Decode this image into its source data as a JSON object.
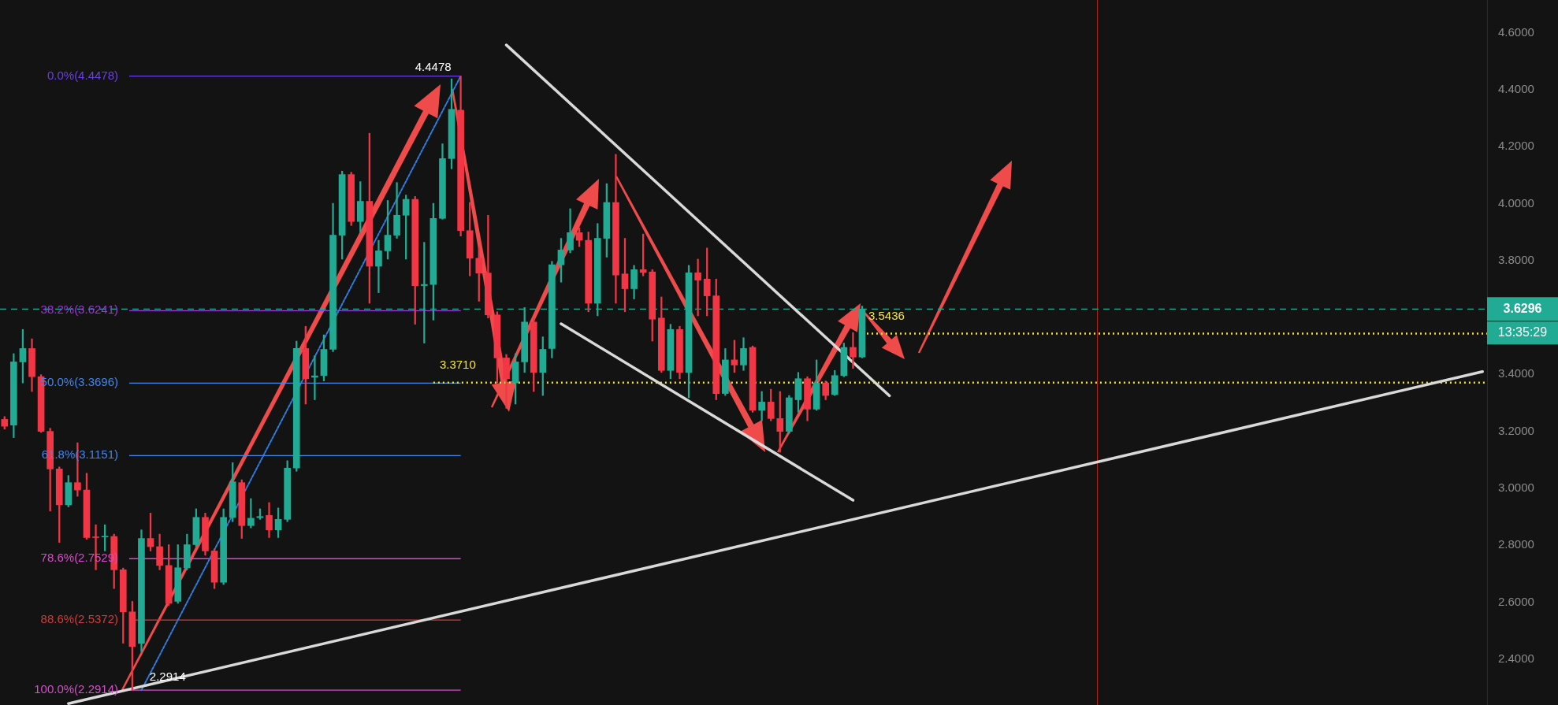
{
  "chart_data": {
    "type": "candlestick",
    "categories": [
      null,
      null,
      null,
      null,
      null,
      null,
      null,
      null,
      null,
      null,
      null,
      null,
      null,
      null,
      null,
      null,
      null,
      null,
      null,
      null,
      null,
      null,
      null,
      null,
      null,
      null,
      null,
      null,
      null,
      null,
      null,
      null,
      null,
      null,
      null,
      null,
      null,
      null,
      null,
      null,
      null,
      null,
      null,
      null,
      null,
      null,
      null,
      null,
      null,
      null,
      null,
      null,
      null,
      null,
      null,
      null,
      null,
      null,
      null,
      null,
      null,
      null,
      null,
      null,
      null,
      null,
      null,
      null,
      null,
      null,
      null,
      null,
      null,
      null,
      null,
      null,
      null,
      null,
      null,
      null,
      null,
      null,
      null,
      null,
      null,
      null,
      null,
      null,
      null,
      null,
      null,
      null,
      null,
      null,
      null,
      null,
      null,
      null,
      null,
      null,
      null,
      null,
      null,
      null,
      null,
      null,
      null,
      null,
      null,
      null,
      null,
      null,
      null,
      null,
      null,
      null,
      null,
      null,
      null,
      null,
      null,
      null,
      null,
      null,
      null,
      null,
      null,
      null,
      null,
      null,
      null,
      null,
      null,
      null,
      null,
      null,
      null,
      null,
      null,
      null,
      null,
      null,
      null,
      null,
      null,
      null,
      null,
      null,
      null,
      null,
      null,
      null,
      null,
      null,
      null,
      null,
      null,
      null,
      null,
      null,
      null,
      null,
      null
    ],
    "ohlc": [
      [
        3.242,
        3.252,
        3.208,
        3.218
      ],
      [
        3.222,
        3.473,
        3.178,
        3.444
      ],
      [
        3.444,
        3.558,
        3.37,
        3.491
      ],
      [
        3.491,
        3.525,
        3.34,
        3.392
      ],
      [
        3.392,
        3.399,
        3.196,
        3.2
      ],
      [
        3.2,
        3.211,
        2.92,
        3.068
      ],
      [
        3.068,
        3.075,
        2.81,
        2.942
      ],
      [
        2.942,
        3.045,
        2.935,
        3.02
      ],
      [
        3.02,
        3.16,
        2.972,
        2.994
      ],
      [
        2.994,
        3.053,
        2.821,
        2.827
      ],
      [
        2.829,
        2.872,
        2.714,
        2.827
      ],
      [
        2.829,
        2.872,
        2.78,
        2.831
      ],
      [
        2.831,
        2.839,
        2.648,
        2.714
      ],
      [
        2.714,
        2.72,
        2.456,
        2.566
      ],
      [
        2.566,
        2.603,
        2.2914,
        2.444
      ],
      [
        2.456,
        2.854,
        2.426,
        2.824
      ],
      [
        2.824,
        2.913,
        2.78,
        2.795
      ],
      [
        2.795,
        2.839,
        2.714,
        2.729
      ],
      [
        2.729,
        2.802,
        2.589,
        2.596
      ],
      [
        2.603,
        2.802,
        2.596,
        2.721
      ],
      [
        2.721,
        2.839,
        2.714,
        2.802
      ],
      [
        2.802,
        2.928,
        2.795,
        2.898
      ],
      [
        2.898,
        2.913,
        2.765,
        2.78
      ],
      [
        2.78,
        2.787,
        2.648,
        2.67
      ],
      [
        2.67,
        2.928,
        2.662,
        2.898
      ],
      [
        2.898,
        3.09,
        2.883,
        3.023
      ],
      [
        3.02,
        3.03,
        2.824,
        2.869
      ],
      [
        2.869,
        2.964,
        2.861,
        2.895
      ],
      [
        2.897,
        2.928,
        2.891,
        2.901
      ],
      [
        2.905,
        2.95,
        2.827,
        2.854
      ],
      [
        2.854,
        2.931,
        2.827,
        2.891
      ],
      [
        2.891,
        3.097,
        2.883,
        3.071
      ],
      [
        3.071,
        3.517,
        3.06,
        3.491
      ],
      [
        3.491,
        3.569,
        3.296,
        3.385
      ],
      [
        3.39,
        3.466,
        3.311,
        3.395
      ],
      [
        3.396,
        3.539,
        3.377,
        3.488
      ],
      [
        3.488,
        4.001,
        3.48,
        3.889
      ],
      [
        3.889,
        4.114,
        3.805,
        4.102
      ],
      [
        4.102,
        4.11,
        3.923,
        3.937
      ],
      [
        3.937,
        4.077,
        3.9,
        4.008
      ],
      [
        4.008,
        4.247,
        3.65,
        3.78
      ],
      [
        3.78,
        3.871,
        3.687,
        3.834
      ],
      [
        3.834,
        4.011,
        3.805,
        3.889
      ],
      [
        3.889,
        4.074,
        3.878,
        3.959
      ],
      [
        3.959,
        4.03,
        3.805,
        4.015
      ],
      [
        4.015,
        4.025,
        3.576,
        3.712
      ],
      [
        3.712,
        3.864,
        3.51,
        3.716
      ],
      [
        3.716,
        4.001,
        3.591,
        3.948
      ],
      [
        3.948,
        4.21,
        3.945,
        4.158
      ],
      [
        4.158,
        4.438,
        4.122,
        4.331
      ],
      [
        4.328,
        4.4478,
        3.886,
        3.905
      ],
      [
        3.905,
        4.004,
        3.746,
        3.808
      ],
      [
        3.808,
        3.845,
        3.657,
        3.756
      ],
      [
        3.756,
        3.959,
        3.598,
        3.609
      ],
      [
        3.609,
        3.62,
        3.37,
        3.458
      ],
      [
        3.458,
        3.47,
        3.281,
        3.385
      ],
      [
        3.37,
        3.473,
        3.296,
        3.444
      ],
      [
        3.444,
        3.635,
        3.407,
        3.584
      ],
      [
        3.584,
        3.598,
        3.34,
        3.407
      ],
      [
        3.407,
        3.532,
        3.326,
        3.488
      ],
      [
        3.491,
        3.797,
        3.458,
        3.785
      ],
      [
        3.785,
        3.878,
        3.724,
        3.837
      ],
      [
        3.837,
        3.982,
        3.827,
        3.898
      ],
      [
        3.898,
        3.915,
        3.849,
        3.871
      ],
      [
        3.871,
        3.9,
        3.62,
        3.65
      ],
      [
        3.65,
        3.93,
        3.606,
        3.878
      ],
      [
        3.878,
        4.07,
        3.812,
        4.004
      ],
      [
        4.004,
        4.173,
        3.65,
        3.749
      ],
      [
        3.753,
        3.878,
        3.62,
        3.701
      ],
      [
        3.701,
        3.783,
        3.665,
        3.768
      ],
      [
        3.768,
        3.893,
        3.746,
        3.758
      ],
      [
        3.76,
        3.768,
        3.517,
        3.594
      ],
      [
        3.598,
        3.672,
        3.407,
        3.414
      ],
      [
        3.414,
        3.576,
        3.385,
        3.558
      ],
      [
        3.558,
        3.569,
        3.385,
        3.407
      ],
      [
        3.407,
        3.783,
        3.318,
        3.757
      ],
      [
        3.757,
        3.805,
        3.606,
        3.731
      ],
      [
        3.735,
        3.844,
        3.606,
        3.676
      ],
      [
        3.676,
        3.735,
        3.311,
        3.333
      ],
      [
        3.333,
        3.491,
        3.326,
        3.451
      ],
      [
        3.451,
        3.52,
        3.407,
        3.433
      ],
      [
        3.433,
        3.529,
        3.414,
        3.491
      ],
      [
        3.495,
        3.5,
        3.267,
        3.274
      ],
      [
        3.274,
        3.34,
        3.237,
        3.303
      ],
      [
        3.303,
        3.348,
        3.237,
        3.245
      ],
      [
        3.245,
        3.34,
        3.127,
        3.2
      ],
      [
        3.2,
        3.326,
        3.193,
        3.318
      ],
      [
        3.311,
        3.407,
        3.267,
        3.385
      ],
      [
        3.385,
        3.392,
        3.237,
        3.278
      ],
      [
        3.278,
        3.451,
        3.274,
        3.37
      ],
      [
        3.37,
        3.377,
        3.311,
        3.326
      ],
      [
        3.329,
        3.414,
        3.326,
        3.396
      ],
      [
        3.396,
        3.51,
        3.392,
        3.495
      ],
      [
        3.495,
        3.547,
        3.421,
        3.461
      ],
      [
        3.461,
        3.64,
        3.458,
        3.6296
      ],
      null,
      null,
      null,
      null,
      null,
      null,
      null,
      null,
      null,
      null,
      null,
      null,
      null,
      null,
      null,
      null,
      null,
      null,
      null,
      null,
      null,
      null,
      null,
      null,
      null,
      null,
      null,
      null,
      null,
      null,
      null,
      null,
      null,
      null,
      null,
      null,
      null,
      null,
      null,
      null,
      null,
      null,
      null,
      null,
      null,
      null,
      null,
      null,
      null,
      null,
      null,
      null,
      null,
      null,
      null,
      null,
      null,
      null,
      null,
      null,
      null,
      null,
      null,
      null,
      null,
      null,
      null,
      null
    ],
    "series": [
      {
        "type": "line",
        "color": "#d9d9d9",
        "values": [
          null,
          null,
          null,
          null,
          null,
          null,
          null,
          2.244,
          null,
          null,
          null,
          null,
          null,
          null,
          null,
          null,
          null,
          null,
          null,
          null,
          null,
          null,
          null,
          null,
          null,
          null,
          null,
          null,
          null,
          null,
          null,
          null,
          null,
          null,
          null,
          null,
          null,
          null,
          null,
          null,
          null,
          null,
          null,
          null,
          null,
          null,
          null,
          null,
          null,
          null,
          null,
          null,
          null,
          null,
          null,
          null,
          null,
          null,
          null,
          null,
          null,
          null,
          null,
          null,
          null,
          null,
          null,
          null,
          null,
          null,
          null,
          null,
          null,
          null,
          null,
          null,
          null,
          null,
          null,
          null,
          null,
          null,
          null,
          null,
          null,
          null,
          null,
          null,
          null,
          null,
          null,
          null,
          null,
          null,
          null,
          null,
          null,
          null,
          null,
          null,
          null,
          null,
          null,
          null,
          null,
          null,
          null,
          null,
          null,
          null,
          null,
          null,
          null,
          null,
          null,
          null,
          null,
          null,
          null,
          null,
          null,
          null,
          null,
          null,
          null,
          null,
          null,
          null,
          null,
          null,
          null,
          null,
          null,
          null,
          null,
          null,
          null,
          null,
          null,
          null,
          null,
          null,
          null,
          null,
          null,
          null,
          null,
          null,
          null,
          null,
          null,
          null,
          null,
          null,
          null,
          null,
          null,
          null,
          null,
          null,
          null,
          null,
          3.41
        ]
      },
      {
        "type": "line",
        "color": "#d9d9d9",
        "values": [
          null,
          null,
          null,
          null,
          null,
          null,
          null,
          null,
          null,
          null,
          null,
          null,
          null,
          null,
          null,
          null,
          null,
          null,
          null,
          null,
          null,
          null,
          null,
          null,
          null,
          null,
          null,
          null,
          null,
          null,
          null,
          null,
          null,
          null,
          null,
          null,
          null,
          null,
          null,
          null,
          null,
          null,
          null,
          null,
          null,
          null,
          null,
          null,
          null,
          null,
          null,
          null,
          null,
          null,
          null,
          4.557,
          null,
          null,
          null,
          null,
          null,
          null,
          null,
          null,
          null,
          null,
          null,
          null,
          null,
          null,
          null,
          null,
          null,
          null,
          null,
          null,
          null,
          null,
          null,
          null,
          null,
          null,
          null,
          null,
          null,
          null,
          null,
          null,
          null,
          null,
          null,
          null,
          null,
          null,
          null,
          null,
          null,
          3.325,
          null,
          null,
          null,
          null,
          null,
          null,
          null,
          null,
          null,
          null,
          null,
          null,
          null,
          null,
          null,
          null,
          null,
          null,
          null,
          null,
          null,
          null,
          null,
          null,
          null,
          null,
          null,
          null,
          null,
          null,
          null,
          null,
          null,
          null,
          null,
          null,
          null,
          null,
          null,
          null,
          null,
          null,
          null,
          null,
          null,
          null,
          null,
          null,
          null,
          null,
          null,
          null,
          null,
          null,
          null,
          null,
          null,
          null,
          null,
          null,
          null,
          null,
          null,
          null,
          null
        ]
      },
      {
        "type": "line",
        "color": "#d9d9d9",
        "values": [
          null,
          null,
          null,
          null,
          null,
          null,
          null,
          null,
          null,
          null,
          null,
          null,
          null,
          null,
          null,
          null,
          null,
          null,
          null,
          null,
          null,
          null,
          null,
          null,
          null,
          null,
          null,
          null,
          null,
          null,
          null,
          null,
          null,
          null,
          null,
          null,
          null,
          null,
          null,
          null,
          null,
          null,
          null,
          null,
          null,
          null,
          null,
          null,
          null,
          null,
          null,
          null,
          null,
          null,
          null,
          null,
          null,
          null,
          null,
          null,
          null,
          3.578,
          null,
          null,
          null,
          null,
          null,
          null,
          null,
          null,
          null,
          null,
          null,
          null,
          null,
          null,
          null,
          null,
          null,
          null,
          null,
          null,
          null,
          null,
          null,
          null,
          null,
          null,
          null,
          null,
          null,
          null,
          null,
          2.958,
          null,
          null,
          null,
          null,
          null,
          null,
          null,
          null,
          null,
          null,
          null,
          null,
          null,
          null,
          null,
          null,
          null,
          null,
          null,
          null,
          null,
          null,
          null,
          null,
          null,
          null,
          null,
          null,
          null,
          null,
          null,
          null,
          null,
          null,
          null,
          null,
          null,
          null,
          null,
          null,
          null,
          null,
          null,
          null,
          null,
          null,
          null,
          null,
          null,
          null,
          null,
          null,
          null,
          null,
          null,
          null,
          null,
          null,
          null,
          null,
          null,
          null,
          null,
          null,
          null,
          null,
          null,
          null,
          null
        ]
      },
      {
        "type": "line",
        "color": "#2f7de1",
        "line_style": "dashed",
        "values": [
          null,
          null,
          null,
          null,
          null,
          null,
          null,
          null,
          null,
          null,
          null,
          null,
          null,
          null,
          null,
          2.291,
          null,
          null,
          null,
          null,
          null,
          null,
          null,
          null,
          null,
          null,
          null,
          null,
          null,
          null,
          null,
          null,
          null,
          null,
          null,
          null,
          null,
          null,
          null,
          null,
          null,
          null,
          null,
          null,
          null,
          null,
          null,
          null,
          null,
          null,
          4.448,
          null,
          null,
          null,
          null,
          null,
          null,
          null,
          null,
          null,
          null,
          null,
          null,
          null,
          null,
          null,
          null,
          null,
          null,
          null,
          null,
          null,
          null,
          null,
          null,
          null,
          null,
          null,
          null,
          null,
          null,
          null,
          null,
          null,
          null,
          null,
          null,
          null,
          null,
          null,
          null,
          null,
          null,
          null,
          null,
          null,
          null,
          null,
          null,
          null,
          null,
          null,
          null,
          null,
          null,
          null,
          null,
          null,
          null,
          null,
          null,
          null,
          null,
          null,
          null,
          null,
          null,
          null,
          null,
          null,
          null,
          null,
          null,
          null,
          null,
          null,
          null,
          null,
          null,
          null,
          null,
          null,
          null,
          null,
          null,
          null,
          null,
          null,
          null,
          null,
          null,
          null,
          null,
          null,
          null,
          null,
          null,
          null,
          null,
          null,
          null,
          null,
          null,
          null,
          null,
          null,
          null,
          null,
          null,
          null,
          null,
          null,
          null
        ]
      }
    ],
    "ylim": [
      2.239,
      4.715
    ],
    "yticks": [
      {
        "value": 2.4,
        "label": "2.4000"
      },
      {
        "value": 2.6,
        "label": "2.6000"
      },
      {
        "value": 2.8,
        "label": "2.8000"
      },
      {
        "value": 3.0,
        "label": "3.0000"
      },
      {
        "value": 3.2,
        "label": "3.2000"
      },
      {
        "value": 3.4,
        "label": "3.4000"
      },
      {
        "value": 3.8,
        "label": "3.8000"
      },
      {
        "value": 4.0,
        "label": "4.0000"
      },
      {
        "value": 4.2,
        "label": "4.2000"
      },
      {
        "value": 4.4,
        "label": "4.4000"
      },
      {
        "value": 4.6,
        "label": "4.6000"
      }
    ],
    "tick_labels": "y",
    "ref_lines": [
      {
        "axis": "y",
        "value": 4.4478,
        "label": "0.0%(4.4478)",
        "color": "#6b3fe6",
        "line_style": "solid"
      },
      {
        "axis": "y",
        "value": 3.6241,
        "label": "38.2%(3.6241)",
        "color": "#9c36d8",
        "line_style": "solid"
      },
      {
        "axis": "y",
        "value": 3.3696,
        "label": "50.0%(3.3696)",
        "color": "#4186ec",
        "line_style": "solid"
      },
      {
        "axis": "y",
        "value": 3.1151,
        "label": "61.8%(3.1151)",
        "color": "#4186ec",
        "line_style": "solid"
      },
      {
        "axis": "y",
        "value": 2.7529,
        "label": "78.6%(2.7529)",
        "color": "#d94ccb",
        "line_style": "solid"
      },
      {
        "axis": "y",
        "value": 2.5372,
        "label": "88.6%(2.5372)",
        "color": "#d63a3a",
        "line_style": "solid"
      },
      {
        "axis": "y",
        "value": 2.2914,
        "label": "100.0%(2.2914)",
        "color": "#d94ccb",
        "line_style": "solid"
      },
      {
        "axis": "y",
        "value": 3.6296,
        "label": "3.6296",
        "color": "#22ab94",
        "line_style": "dashed"
      },
      {
        "axis": "y",
        "value": 3.371,
        "label": "3.3710",
        "color": "#f5e43a",
        "line_style": "dotted"
      },
      {
        "axis": "y",
        "value": 3.5436,
        "label": "3.5436",
        "color": "#f5e43a",
        "line_style": "dotted"
      }
    ],
    "annotations": [
      "13:35:29",
      {
        "text": "4.4478",
        "y": 4.4478
      },
      {
        "text": "2.2914",
        "y": 2.2914
      }
    ]
  }
}
